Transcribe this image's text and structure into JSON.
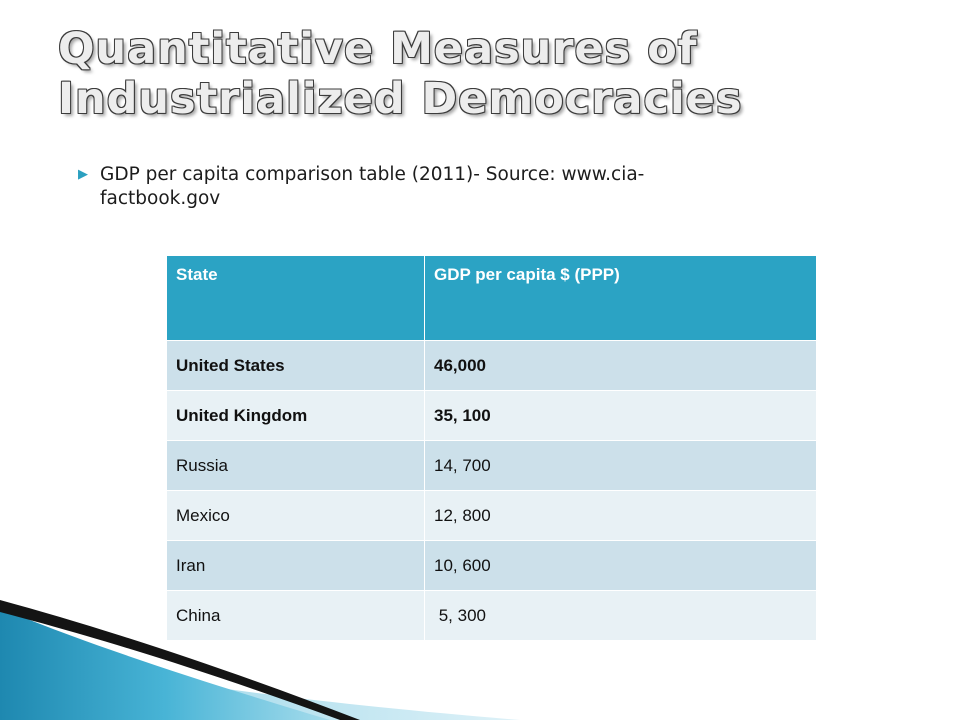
{
  "slide": {
    "title_line1": "Quantitative Measures of",
    "title_line2": "Industrialized Democracies",
    "bullet_line1": "GDP per capita comparison table (2011)- Source: www.cia-",
    "bullet_line2": "factbook.gov",
    "bullet_icon": "triangle-bullet-icon",
    "accent_color": "#2ba3c4"
  },
  "table": {
    "headers": [
      "State",
      "GDP per capita $ (PPP)"
    ],
    "rows": [
      {
        "state": "United States",
        "gdp": "46,000"
      },
      {
        "state": "United Kingdom",
        "gdp": "35, 100"
      },
      {
        "state": "Russia",
        "gdp": "14, 700"
      },
      {
        "state": "Mexico",
        "gdp": "12, 800"
      },
      {
        "state": "Iran",
        "gdp": "10, 600"
      },
      {
        "state": "China",
        "gdp": " 5, 300"
      }
    ]
  }
}
